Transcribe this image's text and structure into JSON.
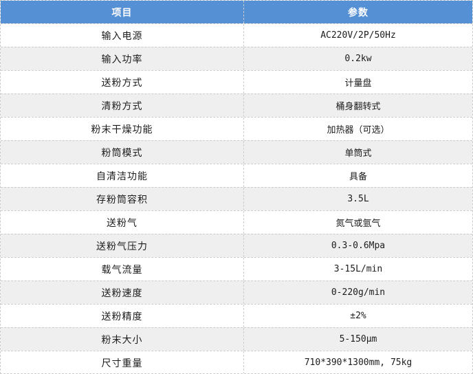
{
  "table": {
    "headers": {
      "item": "项目",
      "param": "参数"
    },
    "colors": {
      "header_bg": "#5590d5",
      "header_text": "#ffffff",
      "row_alt_bg": "#efefef",
      "border": "#cccccc"
    },
    "rows": [
      {
        "label": "输入电源",
        "value": "AC220V/2P/50Hz"
      },
      {
        "label": "输入功率",
        "value": "0.2kw"
      },
      {
        "label": "送粉方式",
        "value": "计量盘"
      },
      {
        "label": "清粉方式",
        "value": "桶身翻转式"
      },
      {
        "label": "粉末干燥功能",
        "value": "加热器（可选）"
      },
      {
        "label": "粉筒模式",
        "value": "单筒式"
      },
      {
        "label": "自清洁功能",
        "value": "具备"
      },
      {
        "label": "存粉筒容积",
        "value": "3.5L"
      },
      {
        "label": "送粉气",
        "value": "氮气或氩气"
      },
      {
        "label": "送粉气压力",
        "value": "0.3-0.6Mpa"
      },
      {
        "label": "载气流量",
        "value": "3-15L/min"
      },
      {
        "label": "送粉速度",
        "value": "0-220g/min"
      },
      {
        "label": "送粉精度",
        "value": "±2%"
      },
      {
        "label": "粉末大小",
        "value": "5-150μm"
      },
      {
        "label": "尺寸重量",
        "value": "710*390*1300mm, 75kg"
      }
    ]
  }
}
